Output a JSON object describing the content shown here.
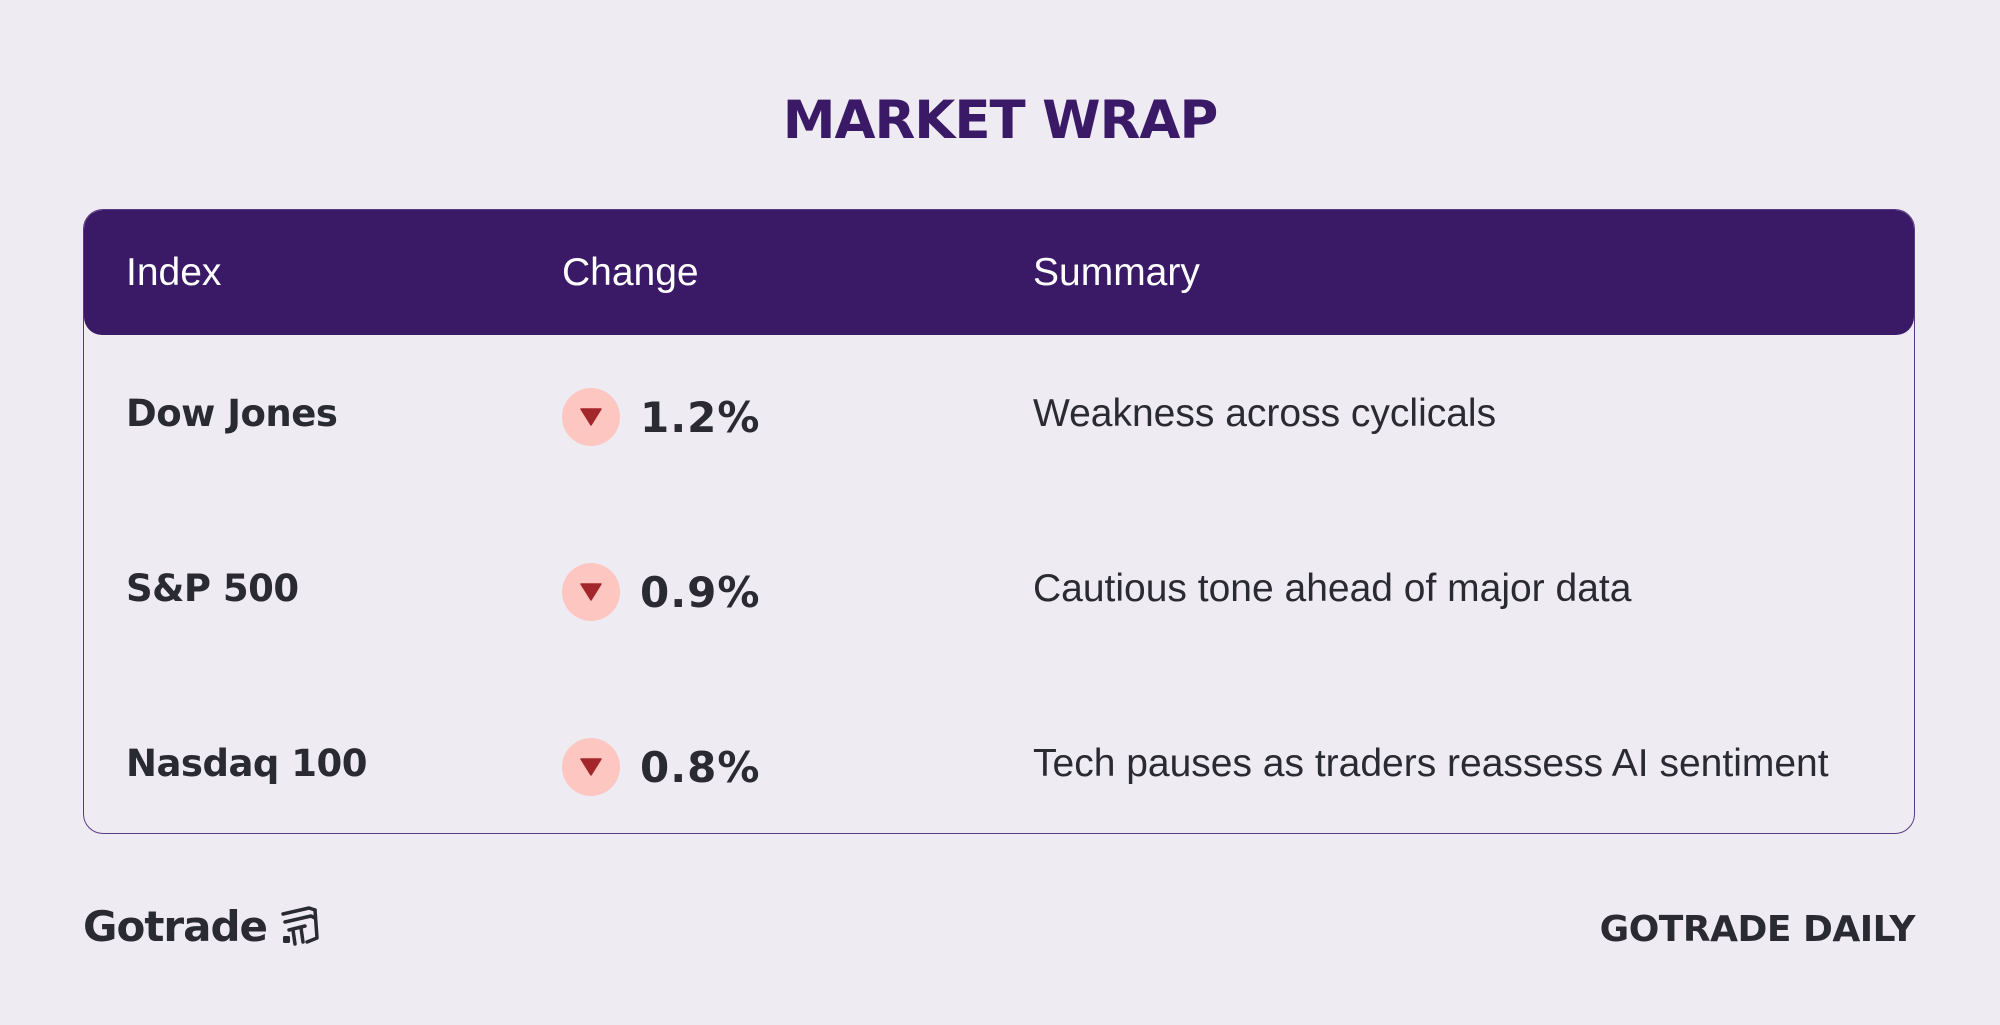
{
  "title": "MARKET WRAP",
  "table": {
    "headers": {
      "index": "Index",
      "change": "Change",
      "summary": "Summary"
    },
    "rows": [
      {
        "index": "Dow Jones",
        "direction": "down",
        "change": "1.2%",
        "summary": "Weakness across cyclicals"
      },
      {
        "index": "S&P 500",
        "direction": "down",
        "change": "0.9%",
        "summary": "Cautious tone ahead of major data"
      },
      {
        "index": "Nasdaq 100",
        "direction": "down",
        "change": "0.8%",
        "summary": "Tech pauses as traders reassess AI sentiment"
      }
    ]
  },
  "footer": {
    "brand": "Gotrade",
    "brand_icon": "gotrade-logo-icon",
    "tagline": "GOTRADE DAILY"
  },
  "colors": {
    "background": "#eeebf3",
    "header": "#3a1a66",
    "down_badge": "#fdc6c0",
    "down_arrow": "#a3262a"
  }
}
